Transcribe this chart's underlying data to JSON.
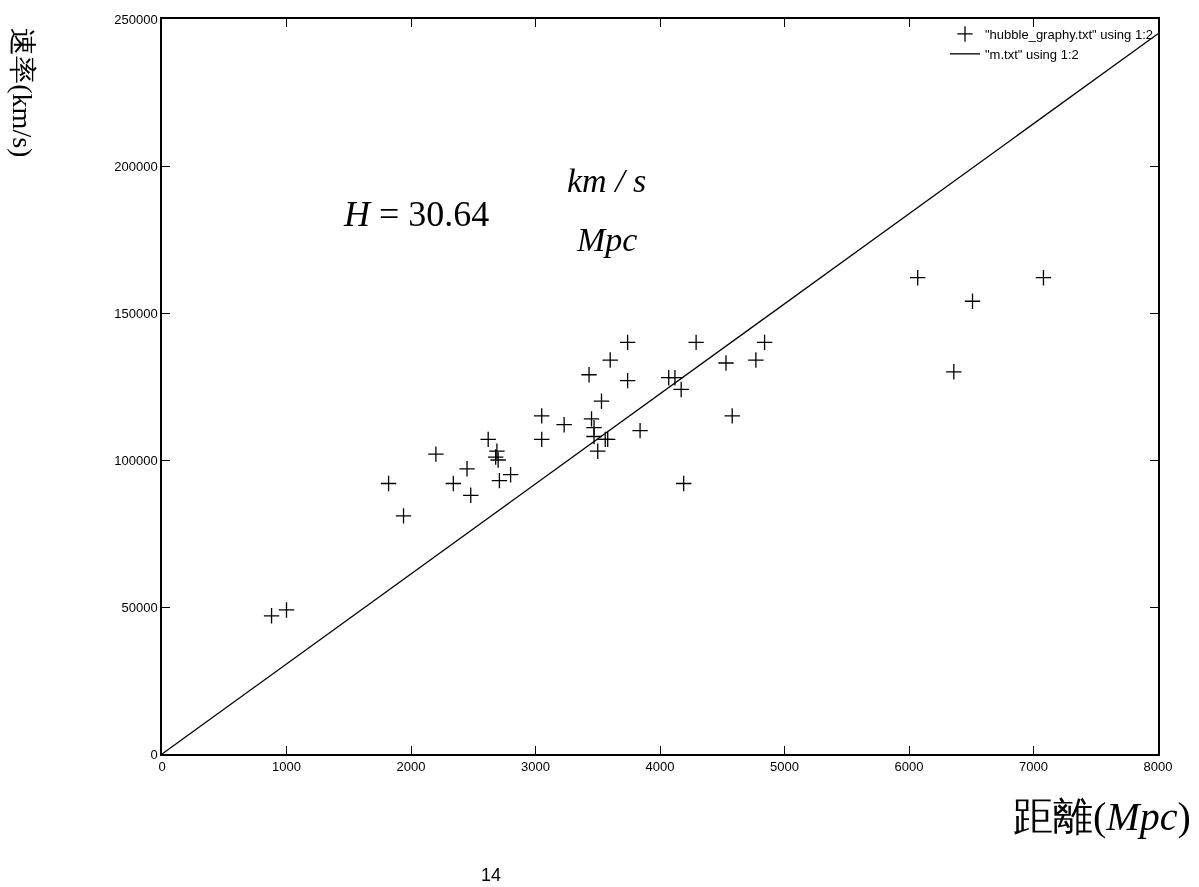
{
  "chart_data": {
    "type": "scatter",
    "xlabel": "距離(Mpc)",
    "ylabel": "速率(km/s)",
    "xlim": [
      0,
      8000
    ],
    "xticks": [
      0,
      1000,
      2000,
      3000,
      4000,
      5000,
      6000,
      7000,
      8000
    ],
    "ylim": [
      0,
      250000
    ],
    "yticks": [
      0,
      50000,
      100000,
      150000,
      200000,
      250000
    ],
    "legend": "top right",
    "marker": "cross",
    "series": [
      {
        "name": "\"hubble_graphy.txt\" using 1:2",
        "color": "#000000",
        "x": [
          880,
          1000,
          1820,
          1940,
          2200,
          2340,
          2450,
          2480,
          2620,
          2690,
          2680,
          2700,
          2710,
          2800,
          3050,
          3050,
          3230,
          3430,
          3450,
          3470,
          3470,
          3500,
          3530,
          3560,
          3580,
          3600,
          3740,
          3740,
          3840,
          4070,
          4120,
          4170,
          4190,
          4290,
          4530,
          4580,
          4770,
          4840,
          6070,
          7080,
          6510,
          6360
        ],
        "values": [
          47000,
          49000,
          92000,
          81000,
          102000,
          92000,
          97000,
          88000,
          107000,
          103000,
          101000,
          100000,
          93000,
          95000,
          115000,
          107000,
          112000,
          129000,
          114000,
          111000,
          108000,
          103000,
          120000,
          107000,
          107000,
          134000,
          140000,
          127000,
          110000,
          128000,
          128000,
          124000,
          92000,
          140000,
          133000,
          115000,
          134000,
          140000,
          162000,
          162000,
          154000,
          130000
        ]
      },
      {
        "name": "\"m.txt\" using 1:2",
        "color": "#000000",
        "type": "line",
        "line_style": "solid",
        "marker": "none",
        "x": [
          0,
          8000
        ],
        "values": [
          0,
          245000
        ]
      }
    ],
    "annotations": [
      "H = 30.64",
      "km / s",
      "Mpc",
      "14"
    ]
  }
}
